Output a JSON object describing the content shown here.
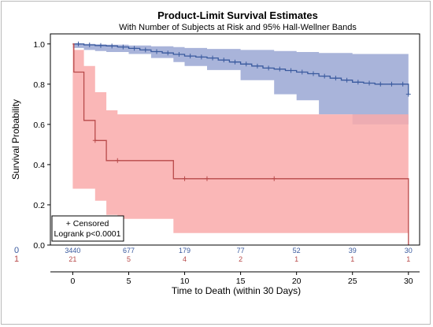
{
  "chart_data": {
    "type": "line",
    "title": "Product-Limit Survival Estimates",
    "subtitle": "With Number of Subjects at Risk and 95% Hall-Wellner Bands",
    "xlabel": "Time to Death (within 30 Days)",
    "ylabel": "Survival Probability",
    "xlim": [
      -2,
      31
    ],
    "ylim": [
      0,
      1.05
    ],
    "x_ticks": [
      "0",
      "5",
      "10",
      "15",
      "20",
      "25",
      "30"
    ],
    "y_ticks": [
      "0.0",
      "0.2",
      "0.4",
      "0.6",
      "0.8",
      "1.0"
    ],
    "colors": {
      "group0": "#3a5a9e",
      "group1": "#b84a4a",
      "band0": "#a9b4da",
      "band1": "#f9aaaa",
      "overlap": "#c98a9a"
    },
    "series": [
      {
        "group": "0",
        "steps": [
          [
            0,
            1.0
          ],
          [
            1,
            0.995
          ],
          [
            2,
            0.992
          ],
          [
            3,
            0.99
          ],
          [
            4,
            0.985
          ],
          [
            5,
            0.978
          ],
          [
            6,
            0.97
          ],
          [
            7,
            0.962
          ],
          [
            8,
            0.955
          ],
          [
            9,
            0.948
          ],
          [
            10,
            0.94
          ],
          [
            11,
            0.935
          ],
          [
            12,
            0.93
          ],
          [
            13,
            0.92
          ],
          [
            14,
            0.91
          ],
          [
            15,
            0.9
          ],
          [
            16,
            0.89
          ],
          [
            17,
            0.88
          ],
          [
            18,
            0.875
          ],
          [
            19,
            0.868
          ],
          [
            20,
            0.86
          ],
          [
            21,
            0.852
          ],
          [
            22,
            0.84
          ],
          [
            23,
            0.83
          ],
          [
            24,
            0.82
          ],
          [
            25,
            0.81
          ],
          [
            26,
            0.805
          ],
          [
            27,
            0.8
          ],
          [
            28,
            0.8
          ],
          [
            29,
            0.8
          ],
          [
            30,
            0.75
          ]
        ],
        "censored": [
          [
            0.5,
            1.0
          ],
          [
            1.5,
            0.995
          ],
          [
            2.5,
            0.992
          ],
          [
            3.5,
            0.99
          ],
          [
            4.5,
            0.985
          ],
          [
            5.5,
            0.978
          ],
          [
            6.5,
            0.97
          ],
          [
            7.5,
            0.962
          ],
          [
            8.5,
            0.955
          ],
          [
            9.5,
            0.948
          ],
          [
            10.5,
            0.94
          ],
          [
            11.5,
            0.935
          ],
          [
            12.5,
            0.93
          ],
          [
            13.5,
            0.92
          ],
          [
            14.5,
            0.91
          ],
          [
            15.5,
            0.9
          ],
          [
            16.5,
            0.89
          ],
          [
            17.5,
            0.88
          ],
          [
            18.5,
            0.875
          ],
          [
            19.5,
            0.868
          ],
          [
            20.5,
            0.86
          ],
          [
            21.5,
            0.852
          ],
          [
            22.5,
            0.84
          ],
          [
            23.5,
            0.83
          ],
          [
            24.5,
            0.82
          ],
          [
            25.5,
            0.81
          ],
          [
            26.5,
            0.805
          ],
          [
            27.5,
            0.8
          ],
          [
            28.5,
            0.8
          ],
          [
            29.5,
            0.8
          ],
          [
            30,
            0.75
          ]
        ],
        "band": {
          "x": [
            0,
            1,
            2,
            3,
            5,
            7,
            9,
            10,
            12,
            15,
            18,
            20,
            22,
            25,
            30
          ],
          "upper": [
            1.0,
            1.0,
            0.998,
            0.996,
            0.992,
            0.988,
            0.984,
            0.98,
            0.975,
            0.97,
            0.965,
            0.96,
            0.955,
            0.95,
            0.94
          ],
          "lower": [
            0.98,
            0.97,
            0.965,
            0.96,
            0.95,
            0.93,
            0.91,
            0.89,
            0.87,
            0.82,
            0.75,
            0.72,
            0.65,
            0.6,
            0.58
          ]
        }
      },
      {
        "group": "1",
        "steps": [
          [
            0,
            1.0
          ],
          [
            0.1,
            0.86
          ],
          [
            1,
            0.62
          ],
          [
            2,
            0.52
          ],
          [
            3,
            0.42
          ],
          [
            4,
            0.42
          ],
          [
            9,
            0.33
          ],
          [
            10,
            0.33
          ],
          [
            12,
            0.33
          ],
          [
            18,
            0.33
          ],
          [
            30,
            0.33
          ],
          [
            30,
            0.0
          ]
        ],
        "censored": [
          [
            2,
            0.52
          ],
          [
            4,
            0.42
          ],
          [
            10,
            0.33
          ],
          [
            12,
            0.33
          ],
          [
            18,
            0.33
          ]
        ],
        "band": {
          "x": [
            0,
            0.1,
            1,
            2,
            3,
            4,
            9,
            10,
            30
          ],
          "upper": [
            1.0,
            0.97,
            0.89,
            0.76,
            0.67,
            0.65,
            0.65,
            0.65,
            0.65
          ],
          "lower": [
            0.28,
            0.28,
            0.28,
            0.22,
            0.15,
            0.13,
            0.06,
            0.06,
            0.06
          ]
        }
      }
    ],
    "at_risk": {
      "groups": [
        "0",
        "1"
      ],
      "times": [
        0,
        5,
        10,
        15,
        20,
        25,
        30
      ],
      "counts": [
        [
          "3440",
          "677",
          "179",
          "77",
          "52",
          "39",
          "30"
        ],
        [
          "21",
          "5",
          "4",
          "2",
          "1",
          "1",
          "1"
        ]
      ]
    },
    "legend": {
      "censored_label": "+ Censored",
      "logrank_label": "Logrank p<0.0001",
      "position": "bottom-left"
    },
    "grid": false
  }
}
